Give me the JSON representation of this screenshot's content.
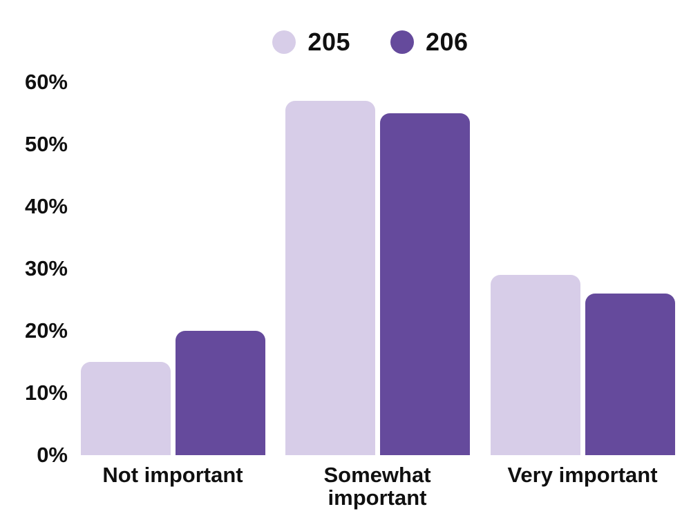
{
  "chart_data": {
    "type": "bar",
    "title": "",
    "xlabel": "",
    "ylabel": "",
    "categories": [
      "Not important",
      "Somewhat important",
      "Very important"
    ],
    "series": [
      {
        "name": "205",
        "color": "#D7CDE8",
        "values": [
          15,
          57,
          29
        ]
      },
      {
        "name": "206",
        "color": "#654A9C",
        "values": [
          20,
          55,
          26
        ]
      }
    ],
    "value_unit": "percent",
    "ylim": [
      0,
      60
    ],
    "y_tick_step": 10,
    "y_ticks": [
      "0%",
      "10%",
      "20%",
      "30%",
      "40%",
      "50%",
      "60%"
    ],
    "grid": false,
    "axis_lines": false,
    "legend_position": "top-center",
    "background_color": "#FFFFFF",
    "label_color": "#101010"
  }
}
